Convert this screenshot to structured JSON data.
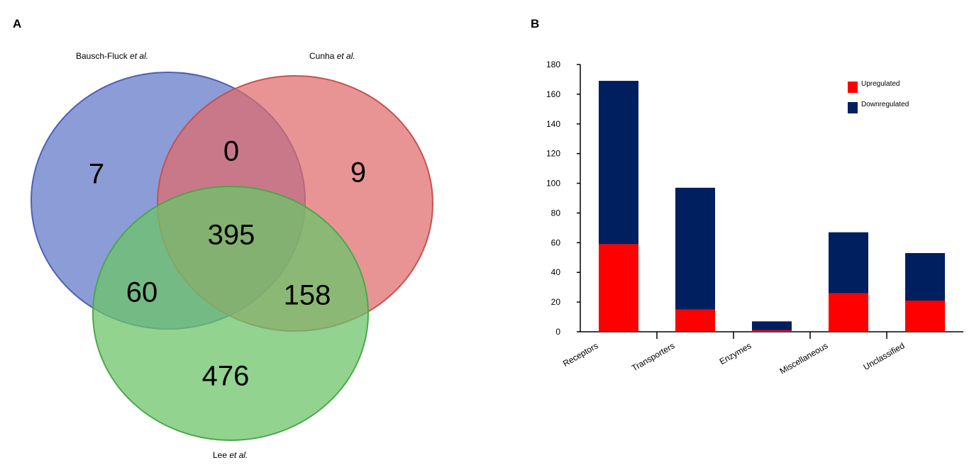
{
  "panels": {
    "a": "A",
    "b": "B"
  },
  "venn": {
    "sets": [
      {
        "name": "Bausch-Fluck",
        "suffix": "et al.",
        "color": "#6f83cc"
      },
      {
        "name": "Cunha",
        "suffix": "et al.",
        "color": "#df6b6b"
      },
      {
        "name": "Lee",
        "suffix": "et al.",
        "color": "#6cc46a"
      }
    ],
    "regions": {
      "only_bausch": "7",
      "bausch_cunha": "0",
      "only_cunha": "9",
      "all_three": "395",
      "bausch_lee": "60",
      "cunha_lee": "158",
      "only_lee": "476"
    }
  },
  "chart_data": {
    "type": "bar",
    "stacked": true,
    "categories": [
      "Receptors",
      "Transporters",
      "Enzymes",
      "Miscellaneous",
      "Unclassified"
    ],
    "series": [
      {
        "name": "Upregulated",
        "color": "#ff0000",
        "values": [
          59,
          15,
          1,
          26,
          21
        ]
      },
      {
        "name": "Downregulated",
        "color": "#001f5f",
        "values": [
          110,
          82,
          6,
          41,
          32
        ]
      }
    ],
    "ylim": [
      0,
      180
    ],
    "yticks": [
      "0",
      "20",
      "40",
      "60",
      "80",
      "100",
      "120",
      "140",
      "160",
      "180"
    ],
    "legend": "top-right",
    "grid": false
  }
}
